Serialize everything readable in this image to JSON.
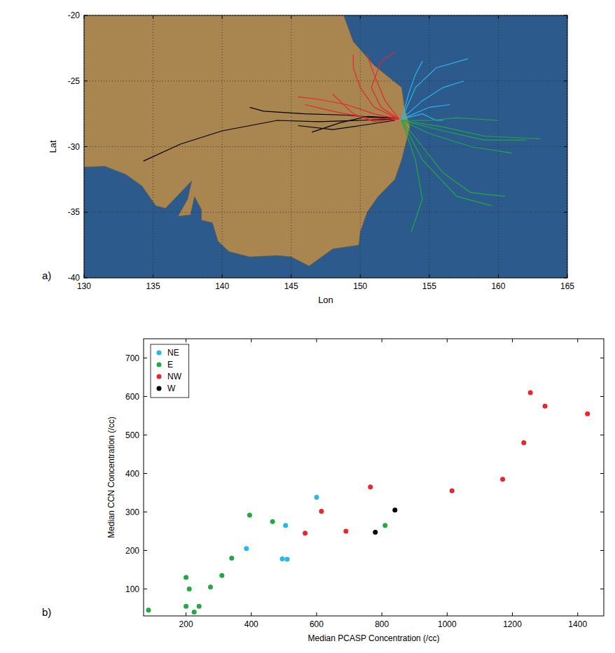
{
  "chart_data": [
    {
      "type": "line",
      "panel_label": "a)",
      "xlabel": "Lon",
      "ylabel": "Lat",
      "xlim": [
        130,
        165
      ],
      "ylim": [
        -40,
        -20
      ],
      "xticks": [
        130,
        135,
        140,
        145,
        150,
        155,
        160,
        165
      ],
      "yticks": [
        -40,
        -35,
        -30,
        -25,
        -20
      ],
      "grid": true,
      "series": [
        {
          "color": "#000000",
          "x": [
            152.5,
            150,
            147,
            144,
            140,
            137,
            134.3
          ],
          "y": [
            -27.9,
            -28.0,
            -28.1,
            -28.0,
            -28.8,
            -29.8,
            -31.1
          ]
        },
        {
          "color": "#000000",
          "x": [
            152.5,
            149,
            146,
            143,
            142
          ],
          "y": [
            -27.9,
            -27.6,
            -27.5,
            -27.3,
            -27.0
          ]
        },
        {
          "color": "#000000",
          "x": [
            152.5,
            150,
            148,
            145.5
          ],
          "y": [
            -28.0,
            -28.4,
            -28.7,
            -28.4
          ]
        },
        {
          "color": "#000000",
          "x": [
            152.5,
            150.5,
            148.5,
            146.5
          ],
          "y": [
            -27.8,
            -27.7,
            -28.2,
            -28.9
          ]
        },
        {
          "color": "#e8262b",
          "x": [
            152.8,
            151,
            150,
            149.5,
            149.5
          ],
          "y": [
            -27.9,
            -27,
            -25.5,
            -24,
            -23
          ]
        },
        {
          "color": "#e8262b",
          "x": [
            152.8,
            151,
            149,
            147,
            145.5
          ],
          "y": [
            -27.9,
            -27.5,
            -26.8,
            -26.4,
            -26.2
          ]
        },
        {
          "color": "#e8262b",
          "x": [
            152.8,
            151.5,
            150.8,
            151.5,
            152.5
          ],
          "y": [
            -27.9,
            -27,
            -25.5,
            -23.5,
            -22.8
          ]
        },
        {
          "color": "#e8262b",
          "x": [
            152.8,
            150.5,
            148,
            146
          ],
          "y": [
            -27.9,
            -27.8,
            -27.3,
            -26.8
          ]
        },
        {
          "color": "#e8262b",
          "x": [
            152.8,
            151.8,
            151,
            150.5
          ],
          "y": [
            -27.9,
            -26.5,
            -24.5,
            -23.0
          ]
        },
        {
          "color": "#e8262b",
          "x": [
            152.8,
            151,
            149.5,
            148
          ],
          "y": [
            -27.9,
            -28.1,
            -27.5,
            -26
          ]
        },
        {
          "color": "#29b6e8",
          "x": [
            153,
            154,
            155.5,
            157.8
          ],
          "y": [
            -27.9,
            -25.5,
            -24,
            -23.3
          ]
        },
        {
          "color": "#29b6e8",
          "x": [
            153,
            154.5,
            156,
            157.5
          ],
          "y": [
            -27.9,
            -26.5,
            -25.5,
            -25
          ]
        },
        {
          "color": "#29b6e8",
          "x": [
            153,
            153.5,
            154,
            154.5
          ],
          "y": [
            -27.9,
            -26,
            -24.5,
            -23.5
          ]
        },
        {
          "color": "#29b6e8",
          "x": [
            153,
            155,
            156.5
          ],
          "y": [
            -27.9,
            -27,
            -26.8
          ]
        },
        {
          "color": "#29b6e8",
          "x": [
            153,
            154.5,
            155.5,
            156
          ],
          "y": [
            -27.9,
            -27.5,
            -28,
            -28
          ]
        },
        {
          "color": "#22a844",
          "x": [
            153,
            156,
            159,
            163
          ],
          "y": [
            -28,
            -28.5,
            -29.2,
            -29.4
          ]
        },
        {
          "color": "#22a844",
          "x": [
            153,
            156,
            159,
            162
          ],
          "y": [
            -28,
            -28.8,
            -29.5,
            -29.5
          ]
        },
        {
          "color": "#22a844",
          "x": [
            153,
            155,
            158,
            161
          ],
          "y": [
            -28,
            -29,
            -30,
            -30.5
          ]
        },
        {
          "color": "#22a844",
          "x": [
            153,
            154.5,
            156,
            158,
            160.5
          ],
          "y": [
            -28,
            -30,
            -32,
            -33.5,
            -33.8
          ]
        },
        {
          "color": "#22a844",
          "x": [
            153,
            154,
            154.5,
            153.7
          ],
          "y": [
            -28,
            -31,
            -34,
            -36.5
          ]
        },
        {
          "color": "#22a844",
          "x": [
            153,
            155,
            157,
            160
          ],
          "y": [
            -28,
            -28,
            -27.8,
            -28
          ]
        },
        {
          "color": "#22a844",
          "x": [
            153,
            154.5,
            157,
            159.5
          ],
          "y": [
            -28,
            -31,
            -33.8,
            -34.5
          ]
        }
      ]
    },
    {
      "type": "scatter",
      "panel_label": "b)",
      "xlabel": "Median PCASP Concentration (/cc)",
      "ylabel": "Median CCN Concentration (/cc)",
      "xlim": [
        70,
        1480
      ],
      "ylim": [
        30,
        750
      ],
      "xticks": [
        200,
        400,
        600,
        800,
        1000,
        1200,
        1400
      ],
      "yticks": [
        100,
        200,
        300,
        400,
        500,
        600,
        700
      ],
      "legend": "top-left",
      "marker": "circle",
      "series": [
        {
          "name": "NE",
          "color": "#29b6e8",
          "x": [
            385,
            495,
            510,
            505,
            600
          ],
          "y": [
            205,
            178,
            177,
            265,
            338
          ]
        },
        {
          "name": "E",
          "color": "#22a844",
          "x": [
            85,
            200,
            210,
            200,
            225,
            240,
            275,
            310,
            340,
            395,
            465,
            810
          ],
          "y": [
            45,
            130,
            100,
            55,
            40,
            55,
            105,
            135,
            180,
            292,
            275,
            265
          ]
        },
        {
          "name": "NW",
          "color": "#e8262b",
          "x": [
            565,
            615,
            690,
            765,
            1015,
            1170,
            1235,
            1255,
            1300,
            1430
          ],
          "y": [
            245,
            302,
            250,
            365,
            355,
            385,
            480,
            610,
            575,
            555
          ]
        },
        {
          "name": "W",
          "color": "#000000",
          "x": [
            780,
            840
          ],
          "y": [
            247,
            305
          ]
        }
      ]
    }
  ]
}
